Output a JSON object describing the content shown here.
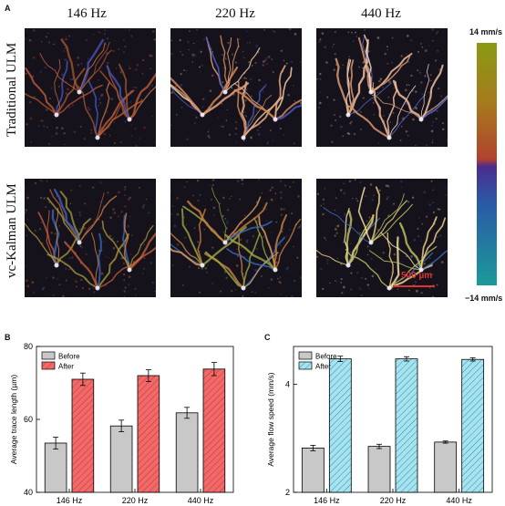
{
  "panel_a": {
    "letter": "A",
    "frequencies": [
      "146 Hz",
      "220 Hz",
      "440 Hz"
    ],
    "rows": [
      "Traditional ULM",
      "vc-Kalman ULM"
    ],
    "colorbar": {
      "max_label": "14 mm/s",
      "min_label": "−14 mm/s",
      "colors": [
        "#8a9a14",
        "#a67a1c",
        "#b1422e",
        "#4b2c8f",
        "#2a5aa6",
        "#1c9a9a"
      ]
    },
    "scale_bar_label": "500 µm"
  },
  "chart_data": [
    {
      "panel": "B",
      "type": "bar",
      "categories": [
        "146 Hz",
        "220 Hz",
        "440 Hz"
      ],
      "ylabel": "Average trace length (µm)",
      "ylim": [
        40,
        80
      ],
      "yticks": [
        40,
        60,
        80
      ],
      "legend_position": "top-left",
      "series": [
        {
          "name": "Before",
          "values": [
            53.5,
            58.2,
            61.8
          ],
          "errors": [
            1.6,
            1.6,
            1.5
          ],
          "color": "#c8c8c8",
          "hatch": false
        },
        {
          "name": "After",
          "values": [
            71.0,
            72.0,
            73.8
          ],
          "errors": [
            1.7,
            1.6,
            1.8
          ],
          "color": "#f06a6a",
          "hatch": true
        }
      ]
    },
    {
      "panel": "C",
      "type": "bar",
      "categories": [
        "146 Hz",
        "220 Hz",
        "440 Hz"
      ],
      "ylabel": "Average flow speed (mm/s)",
      "ylim": [
        2,
        4.7
      ],
      "yticks": [
        2,
        4
      ],
      "legend_position": "top-left",
      "series": [
        {
          "name": "Before",
          "values": [
            2.82,
            2.85,
            2.93
          ],
          "errors": [
            0.05,
            0.04,
            0.02
          ],
          "color": "#c8c8c8",
          "hatch": false
        },
        {
          "name": "After",
          "values": [
            4.47,
            4.47,
            4.46
          ],
          "errors": [
            0.05,
            0.04,
            0.03
          ],
          "color": "#a7e3ef",
          "hatch": true
        }
      ]
    }
  ]
}
